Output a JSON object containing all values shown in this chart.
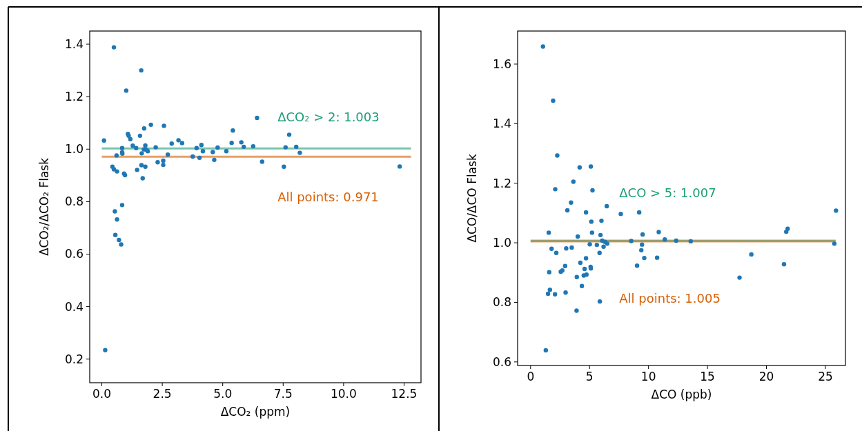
{
  "chart_data": [
    {
      "type": "scatter",
      "xlabel": "ΔCO₂ (ppm)",
      "ylabel": "ΔCO₂/ΔCO₂ Flask",
      "marker": "circle",
      "xlim": [
        -0.5,
        13.2
      ],
      "ylim": [
        0.11,
        1.45
      ],
      "xticks": [
        {
          "value": 0,
          "label": "0.0"
        },
        {
          "value": 2.5,
          "label": "2.5"
        },
        {
          "value": 5,
          "label": "5.0"
        },
        {
          "value": 7.5,
          "label": "7.5"
        },
        {
          "value": 10,
          "label": "10.0"
        },
        {
          "value": 12.5,
          "label": "12.5"
        }
      ],
      "yticks": [
        {
          "value": 0.2,
          "label": "0.2"
        },
        {
          "value": 0.4,
          "label": "0.4"
        },
        {
          "value": 0.6,
          "label": "0.6"
        },
        {
          "value": 0.8,
          "label": "0.8"
        },
        {
          "value": 1.0,
          "label": "1.0"
        },
        {
          "value": 1.2,
          "label": "1.2"
        },
        {
          "value": 1.4,
          "label": "1.4"
        }
      ],
      "series": [
        {
          "color": "#1f77b4",
          "x": [
            0.5,
            1.63,
            1.01,
            0.09,
            1.08,
            1.11,
            1.18,
            1.58,
            1.75,
            2.03,
            2.57,
            1.28,
            0.84,
            1.42,
            1.8,
            1.74,
            1.85,
            1.9,
            2.23,
            0.61,
            0.84,
            0.85,
            1.65,
            2.73,
            2.31,
            2.54,
            2.54,
            0.44,
            0.5,
            0.63,
            0.92,
            0.96,
            1.46,
            1.64,
            1.8,
            1.69,
            0.84,
            0.54,
            0.63,
            0.56,
            0.71,
            0.8,
            0.14,
            3.76,
            3.92,
            4.04,
            2.89,
            3.17,
            3.32,
            4.12,
            4.18,
            4.59,
            4.65,
            4.79,
            5.15,
            5.37,
            5.42,
            5.77,
            5.87,
            6.26,
            6.42,
            6.63,
            7.53,
            7.6,
            7.75,
            8.04,
            8.19,
            12.32
          ],
          "values": [
            1.388,
            1.3,
            1.223,
            1.033,
            1.058,
            1.051,
            1.038,
            1.051,
            1.079,
            1.093,
            1.089,
            1.013,
            1.004,
            1.004,
            1.014,
            0.999,
            0.997,
            0.992,
            1.007,
            0.976,
            0.988,
            0.983,
            0.984,
            0.979,
            0.95,
            0.956,
            0.94,
            0.933,
            0.923,
            0.915,
            0.907,
            0.901,
            0.921,
            0.939,
            0.933,
            0.889,
            0.787,
            0.763,
            0.732,
            0.673,
            0.654,
            0.637,
            0.234,
            0.972,
            1.004,
            0.967,
            1.021,
            1.034,
            1.023,
            1.016,
            0.992,
            0.989,
            0.959,
            1.006,
            0.992,
            1.024,
            1.071,
            1.026,
            1.009,
            1.011,
            1.119,
            0.952,
            0.933,
            1.007,
            1.055,
            1.009,
            0.986,
            0.934
          ]
        }
      ],
      "ref_lines": [
        {
          "axis": "y",
          "value": 1.003,
          "color": "#1b9e77"
        },
        {
          "axis": "y",
          "value": 0.971,
          "color": "#d95f02"
        }
      ],
      "annotations": [
        "ΔCO₂ > 2: 1.003",
        "All points: 0.971"
      ]
    },
    {
      "type": "scatter",
      "xlabel": "ΔCO (ppb)",
      "ylabel": "ΔCO/ΔCO Flask",
      "marker": "circle",
      "xlim": [
        -1.1,
        26.7
      ],
      "ylim": [
        0.588,
        1.711
      ],
      "xticks": [
        0,
        5,
        10,
        15,
        20,
        25
      ],
      "yticks": [
        {
          "value": 0.6,
          "label": "0.6"
        },
        {
          "value": 0.8,
          "label": "0.8"
        },
        {
          "value": 1.0,
          "label": "1.0"
        },
        {
          "value": 1.2,
          "label": "1.2"
        },
        {
          "value": 1.4,
          "label": "1.4"
        },
        {
          "value": 1.6,
          "label": "1.6"
        }
      ],
      "series": [
        {
          "color": "#1f77b4",
          "x": [
            1.05,
            1.91,
            2.26,
            4.16,
            5.11,
            3.63,
            2.09,
            5.25,
            3.43,
            3.12,
            4.7,
            6.46,
            5.15,
            6.01,
            1.54,
            5.21,
            4.0,
            5.93,
            5.02,
            5.62,
            6.19,
            6.07,
            6.31,
            6.5,
            1.78,
            2.18,
            3.02,
            3.49,
            5.85,
            4.7,
            4.22,
            2.93,
            5.09,
            5.11,
            4.58,
            2.56,
            2.69,
            1.58,
            3.92,
            4.51,
            4.74,
            4.35,
            1.64,
            1.48,
            2.07,
            2.97,
            5.87,
            3.9,
            1.29,
            7.65,
            9.21,
            8.53,
            9.5,
            9.45,
            9.39,
            9.64,
            9.03,
            10.73,
            10.87,
            11.38,
            12.35,
            13.58,
            17.72,
            18.72,
            21.49,
            21.68,
            21.8,
            25.9,
            25.76
          ],
          "values": [
            1.659,
            1.477,
            1.293,
            1.253,
            1.256,
            1.205,
            1.18,
            1.176,
            1.135,
            1.109,
            1.102,
            1.123,
            1.071,
            1.074,
            1.034,
            1.034,
            1.021,
            1.026,
            0.995,
            0.993,
            0.987,
            1.007,
            1.003,
            0.997,
            0.98,
            0.966,
            0.981,
            0.984,
            0.966,
            0.948,
            0.933,
            0.922,
            0.919,
            0.914,
            0.912,
            0.903,
            0.907,
            0.901,
            0.885,
            0.89,
            0.893,
            0.855,
            0.842,
            0.829,
            0.827,
            0.833,
            0.803,
            0.772,
            0.639,
            1.097,
            1.102,
            1.006,
            1.028,
            0.994,
            0.975,
            0.949,
            0.923,
            0.95,
            1.036,
            1.011,
            1.007,
            1.005,
            0.883,
            0.961,
            0.928,
            1.037,
            1.047,
            1.108,
            0.997
          ]
        }
      ],
      "ref_lines": [
        {
          "axis": "y",
          "value": 1.007,
          "color": "#1b9e77"
        },
        {
          "axis": "y",
          "value": 1.005,
          "color": "#d95f02"
        }
      ],
      "annotations": [
        "ΔCO > 5: 1.007",
        "All points: 1.005"
      ]
    }
  ]
}
